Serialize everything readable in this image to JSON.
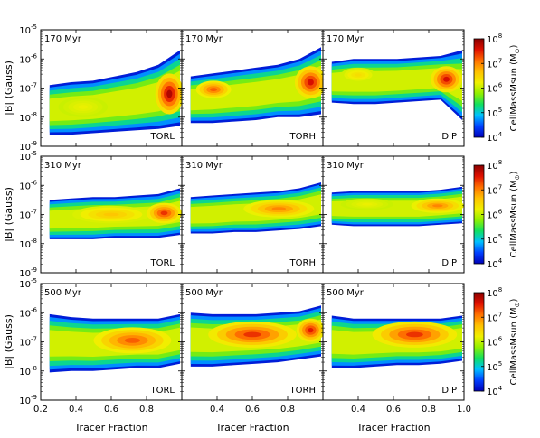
{
  "figure": {
    "ylabel_html": "|B| (Gauss)",
    "xlabel": "Tracer Fraction",
    "colorbar_label": "CellMassMsun",
    "colorbar_unit": "(M",
    "colorbar_unit_sub": "⊙",
    "colorbar_unit_close": ")"
  },
  "chart_data": {
    "type": "heatmap",
    "title": "",
    "xlabel": "Tracer Fraction",
    "ylabel": "|B| (Gauss)",
    "y_scale": "log",
    "y_lim": [
      1e-09,
      1e-05
    ],
    "y_ticks": [
      {
        "label": "10",
        "exp": "-9",
        "value": -9
      },
      {
        "label": "10",
        "exp": "-8",
        "value": -8
      },
      {
        "label": "10",
        "exp": "-7",
        "value": -7
      },
      {
        "label": "10",
        "exp": "-6",
        "value": -6
      },
      {
        "label": "10",
        "exp": "-5",
        "value": -5
      }
    ],
    "x_lim": [
      0.2,
      1.0
    ],
    "x_ticks_first_col": [
      "0.2",
      "0.4",
      "0.6",
      "0.8"
    ],
    "x_ticks_other_cols": [
      "0.4",
      "0.6",
      "0.8"
    ],
    "x_ticks_last_col": [
      "0.4",
      "0.6",
      "0.8",
      "1.0"
    ],
    "colorbar": {
      "scale": "log",
      "ticks": [
        {
          "label": "10",
          "exp": "4"
        },
        {
          "label": "10",
          "exp": "5"
        },
        {
          "label": "10",
          "exp": "6"
        },
        {
          "label": "10",
          "exp": "7"
        },
        {
          "label": "10",
          "exp": "8"
        }
      ],
      "colors": [
        "#0000b8",
        "#0040ff",
        "#00c0ff",
        "#10e060",
        "#90f000",
        "#f0f000",
        "#ffc000",
        "#ff7000",
        "#e01000",
        "#8a0000"
      ]
    },
    "rows": [
      {
        "time": "170 Myr",
        "panels": [
          {
            "label": "TORL",
            "y_top": [
              -6.9,
              -6.8,
              -6.75,
              -6.6,
              -6.45,
              -6.2,
              -5.7
            ],
            "y_bot": [
              -8.6,
              -8.6,
              -8.55,
              -8.5,
              -8.45,
              -8.4,
              -8.3
            ],
            "blobs": [
              {
                "x": 0.44,
                "y": -7.65,
                "w": 0.14,
                "h": 0.35,
                "lvl": 0.55
              },
              {
                "x": 0.93,
                "y": -7.2,
                "w": 0.08,
                "h": 0.7,
                "lvl": 0.95
              }
            ]
          },
          {
            "label": "TORH",
            "y_top": [
              -6.6,
              -6.5,
              -6.4,
              -6.3,
              -6.2,
              -6.0,
              -5.6
            ],
            "y_bot": [
              -8.2,
              -8.2,
              -8.15,
              -8.1,
              -8.0,
              -8.0,
              -7.9
            ],
            "blobs": [
              {
                "x": 0.38,
                "y": -7.05,
                "w": 0.1,
                "h": 0.3,
                "lvl": 0.8
              },
              {
                "x": 0.93,
                "y": -6.8,
                "w": 0.09,
                "h": 0.55,
                "lvl": 0.9
              }
            ]
          },
          {
            "label": "DIP",
            "y_top": [
              -6.1,
              -6.0,
              -6.0,
              -6.0,
              -5.95,
              -5.9,
              -5.7
            ],
            "y_bot": [
              -7.5,
              -7.55,
              -7.55,
              -7.5,
              -7.45,
              -7.4,
              -8.1
            ],
            "blobs": [
              {
                "x": 0.4,
                "y": -6.55,
                "w": 0.1,
                "h": 0.25,
                "lvl": 0.6
              },
              {
                "x": 0.9,
                "y": -6.7,
                "w": 0.09,
                "h": 0.45,
                "lvl": 0.9
              }
            ]
          }
        ]
      },
      {
        "time": "310 Myr",
        "panels": [
          {
            "label": "TORL",
            "y_top": [
              -6.5,
              -6.45,
              -6.4,
              -6.4,
              -6.35,
              -6.3,
              -6.1
            ],
            "y_bot": [
              -7.85,
              -7.85,
              -7.85,
              -7.8,
              -7.8,
              -7.8,
              -7.7
            ],
            "blobs": [
              {
                "x": 0.6,
                "y": -7.0,
                "w": 0.22,
                "h": 0.3,
                "lvl": 0.65
              },
              {
                "x": 0.9,
                "y": -6.95,
                "w": 0.1,
                "h": 0.35,
                "lvl": 0.85
              }
            ]
          },
          {
            "label": "TORH",
            "y_top": [
              -6.4,
              -6.35,
              -6.3,
              -6.25,
              -6.2,
              -6.1,
              -5.9
            ],
            "y_bot": [
              -7.65,
              -7.65,
              -7.6,
              -7.6,
              -7.55,
              -7.5,
              -7.4
            ],
            "blobs": [
              {
                "x": 0.75,
                "y": -6.8,
                "w": 0.2,
                "h": 0.3,
                "lvl": 0.75
              }
            ]
          },
          {
            "label": "DIP",
            "y_top": [
              -6.25,
              -6.2,
              -6.2,
              -6.2,
              -6.2,
              -6.15,
              -6.05
            ],
            "y_bot": [
              -7.35,
              -7.4,
              -7.4,
              -7.4,
              -7.4,
              -7.35,
              -7.3
            ],
            "blobs": [
              {
                "x": 0.85,
                "y": -6.7,
                "w": 0.15,
                "h": 0.25,
                "lvl": 0.75
              },
              {
                "x": 0.45,
                "y": -6.65,
                "w": 0.15,
                "h": 0.2,
                "lvl": 0.55
              }
            ]
          }
        ]
      },
      {
        "time": "500 Myr",
        "panels": [
          {
            "label": "TORL",
            "y_top": [
              -6.05,
              -6.15,
              -6.2,
              -6.2,
              -6.2,
              -6.2,
              -6.05
            ],
            "y_bot": [
              -8.05,
              -8.0,
              -8.0,
              -7.95,
              -7.9,
              -7.9,
              -7.75
            ],
            "blobs": [
              {
                "x": 0.72,
                "y": -6.95,
                "w": 0.22,
                "h": 0.45,
                "lvl": 0.8
              }
            ]
          },
          {
            "label": "TORH",
            "y_top": [
              -6.0,
              -6.05,
              -6.05,
              -6.05,
              -6.0,
              -5.95,
              -5.75
            ],
            "y_bot": [
              -7.85,
              -7.85,
              -7.8,
              -7.75,
              -7.7,
              -7.6,
              -7.5
            ],
            "blobs": [
              {
                "x": 0.6,
                "y": -6.75,
                "w": 0.25,
                "h": 0.45,
                "lvl": 0.85
              },
              {
                "x": 0.93,
                "y": -6.6,
                "w": 0.08,
                "h": 0.4,
                "lvl": 0.88
              }
            ]
          },
          {
            "label": "DIP",
            "y_top": [
              -6.1,
              -6.2,
              -6.2,
              -6.2,
              -6.2,
              -6.2,
              -6.1
            ],
            "y_bot": [
              -7.9,
              -7.9,
              -7.85,
              -7.8,
              -7.8,
              -7.75,
              -7.65
            ],
            "blobs": [
              {
                "x": 0.72,
                "y": -6.75,
                "w": 0.24,
                "h": 0.45,
                "lvl": 0.85
              }
            ]
          }
        ]
      }
    ]
  }
}
